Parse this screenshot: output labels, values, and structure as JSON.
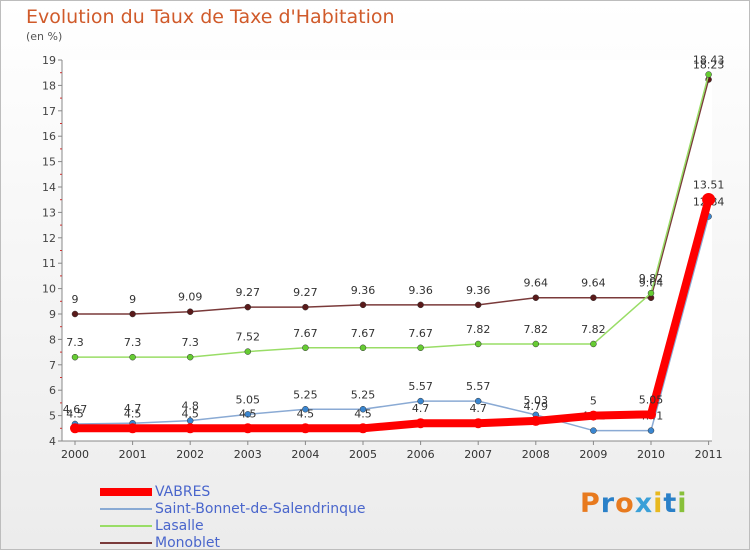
{
  "chart_data": {
    "type": "line",
    "title": "Evolution du Taux de Taxe d'Habitation",
    "unit_label": "(en %)",
    "x": [
      "2000",
      "2001",
      "2002",
      "2003",
      "2004",
      "2005",
      "2006",
      "2007",
      "2008",
      "2009",
      "2010",
      "2011"
    ],
    "y_ticks": [
      "4",
      "5",
      "6",
      "7",
      "8",
      "9",
      "10",
      "11",
      "12",
      "13",
      "14",
      "15",
      "16",
      "17",
      "18",
      "19"
    ],
    "ylim": [
      4,
      19
    ],
    "series": [
      {
        "name": "Monoblet",
        "color": "#7a3a3a",
        "marker": "#5a1a1a",
        "width": 1.5,
        "values": [
          9,
          9,
          9.09,
          9.27,
          9.27,
          9.36,
          9.36,
          9.36,
          9.64,
          9.64,
          9.64,
          18.23
        ],
        "labels": [
          "9",
          "9",
          "9.09",
          "9.27",
          "9.27",
          "9.36",
          "9.36",
          "9.36",
          "9.64",
          "9.64",
          "9.64",
          "18.23"
        ]
      },
      {
        "name": "Lasalle",
        "color": "#99dd66",
        "marker": "#66cc33",
        "width": 1.5,
        "values": [
          7.3,
          7.3,
          7.3,
          7.52,
          7.67,
          7.67,
          7.67,
          7.82,
          7.82,
          7.82,
          9.82,
          18.43
        ],
        "labels": [
          "7.3",
          "7.3",
          "7.3",
          "7.52",
          "7.67",
          "7.67",
          "7.67",
          "7.82",
          "7.82",
          "7.82",
          "9.82",
          "18.43"
        ]
      },
      {
        "name": "Saint-Bonnet-de-Salendrinque",
        "color": "#8aaad4",
        "marker": "#3a86d0",
        "width": 1.5,
        "values": [
          4.67,
          4.7,
          4.8,
          5.05,
          5.25,
          5.25,
          5.57,
          5.57,
          5.03,
          4.41,
          4.41,
          12.84
        ],
        "labels": [
          "4.67",
          "4.7",
          "4.8",
          "5.05",
          "5.25",
          "5.25",
          "5.57",
          "5.57",
          "5.03",
          "4.41",
          "4.41",
          "12.84"
        ]
      },
      {
        "name": "VABRES",
        "color": "#ff0000",
        "marker": "#ff0000",
        "width": 8,
        "values": [
          4.5,
          4.5,
          4.5,
          4.5,
          4.5,
          4.5,
          4.7,
          4.7,
          4.79,
          5,
          5.05,
          13.51
        ],
        "labels": [
          "4.5",
          "4.5",
          "4.5",
          "4.5",
          "4.5",
          "4.5",
          "4.7",
          "4.7",
          "4.79",
          "5",
          "5.05",
          "13.51"
        ]
      }
    ],
    "legend_order": [
      "VABRES",
      "Saint-Bonnet-de-Salendrinque",
      "Lasalle",
      "Monoblet"
    ]
  },
  "logo": {
    "letters": [
      "P",
      "r",
      "o",
      "x",
      "i",
      "t",
      "i"
    ],
    "colors": [
      "#e87a1e",
      "#2a80c8",
      "#e87a1e",
      "#3aa0d8",
      "#e8b81e",
      "#2a80c8",
      "#88c03a"
    ]
  }
}
